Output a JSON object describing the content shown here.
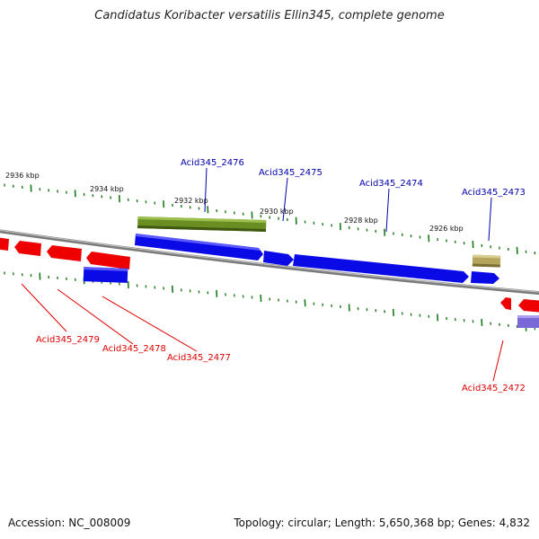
{
  "title": "Candidatus Koribacter versatilis Ellin345, complete genome",
  "footer": {
    "accession": "Accession: NC_008009",
    "summary": "Topology: circular; Length: 5,650,368 bp; Genes: 4,832"
  },
  "ticks": [
    {
      "label": "2936 kbp",
      "kbp": 2936
    },
    {
      "label": "2934 kbp",
      "kbp": 2934
    },
    {
      "label": "2932 kbp",
      "kbp": 2932
    },
    {
      "label": "2930 kbp",
      "kbp": 2930
    },
    {
      "label": "2928 kbp",
      "kbp": 2928
    },
    {
      "label": "2926 kbp",
      "kbp": 2926
    }
  ],
  "genes": [
    {
      "label": "Acid345_2476",
      "strand": "forward",
      "color": "#0000aa"
    },
    {
      "label": "Acid345_2475",
      "strand": "forward",
      "color": "#0000aa"
    },
    {
      "label": "Acid345_2474",
      "strand": "forward",
      "color": "#0000aa"
    },
    {
      "label": "Acid345_2473",
      "strand": "forward",
      "color": "#0000aa"
    },
    {
      "label": "Acid345_2479",
      "strand": "reverse",
      "color": "#dd0000"
    },
    {
      "label": "Acid345_2478",
      "strand": "reverse",
      "color": "#dd0000"
    },
    {
      "label": "Acid345_2477",
      "strand": "reverse",
      "color": "#dd0000"
    },
    {
      "label": "Acid345_2472",
      "strand": "reverse",
      "color": "#dd0000"
    }
  ],
  "colors": {
    "forward_cds": "#0a0ae6",
    "reverse_cds": "#ee0000",
    "feature_green": "#6b8e23",
    "feature_khaki": "#b5a55c",
    "feature_lavender": "#7b68d8",
    "backbone": "#888888",
    "tick": "#1a7a1a"
  }
}
